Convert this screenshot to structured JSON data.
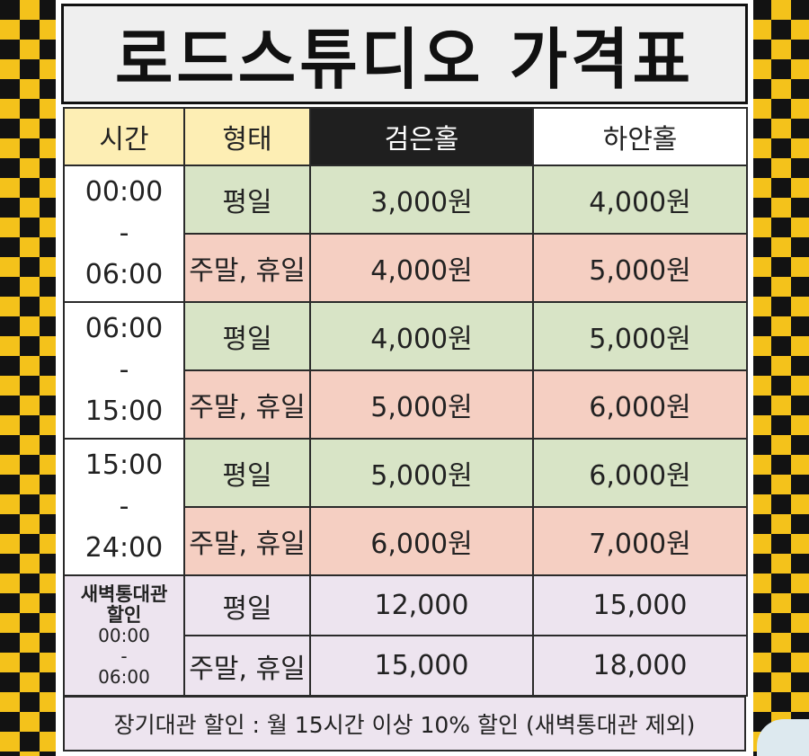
{
  "title": "로드스튜디오 가격표",
  "header": {
    "time": "시간",
    "type": "형태",
    "black_hall": "검은홀",
    "white_hall": "하얀홀"
  },
  "colors": {
    "header_yellow": "#fdeeb4",
    "weekday_green": "#d8e4c6",
    "weekend_pink": "#f5cfc2",
    "night_lavender": "#ede4ef",
    "checker_yellow": "#f4c21b"
  },
  "slots": [
    {
      "start": "00:00",
      "dash": "-",
      "end": "06:00",
      "weekday": {
        "label": "평일",
        "black": "3,000원",
        "white": "4,000원"
      },
      "weekend": {
        "label": "주말, 휴일",
        "black": "4,000원",
        "white": "5,000원"
      }
    },
    {
      "start": "06:00",
      "dash": "-",
      "end": "15:00",
      "weekday": {
        "label": "평일",
        "black": "4,000원",
        "white": "5,000원"
      },
      "weekend": {
        "label": "주말, 휴일",
        "black": "5,000원",
        "white": "6,000원"
      }
    },
    {
      "start": "15:00",
      "dash": "-",
      "end": "24:00",
      "weekday": {
        "label": "평일",
        "black": "5,000원",
        "white": "6,000원"
      },
      "weekend": {
        "label": "주말, 휴일",
        "black": "6,000원",
        "white": "7,000원"
      }
    }
  ],
  "night": {
    "line1": "새벽통대관",
    "line2": "할인",
    "start": "00:00",
    "dash": "-",
    "end": "06:00",
    "weekday": {
      "label": "평일",
      "black": "12,000",
      "white": "15,000"
    },
    "weekend": {
      "label": "주말, 휴일",
      "black": "15,000",
      "white": "18,000"
    }
  },
  "note": "장기대관 할인 : 월 15시간 이상 10% 할인 (새벽통대관 제외)"
}
